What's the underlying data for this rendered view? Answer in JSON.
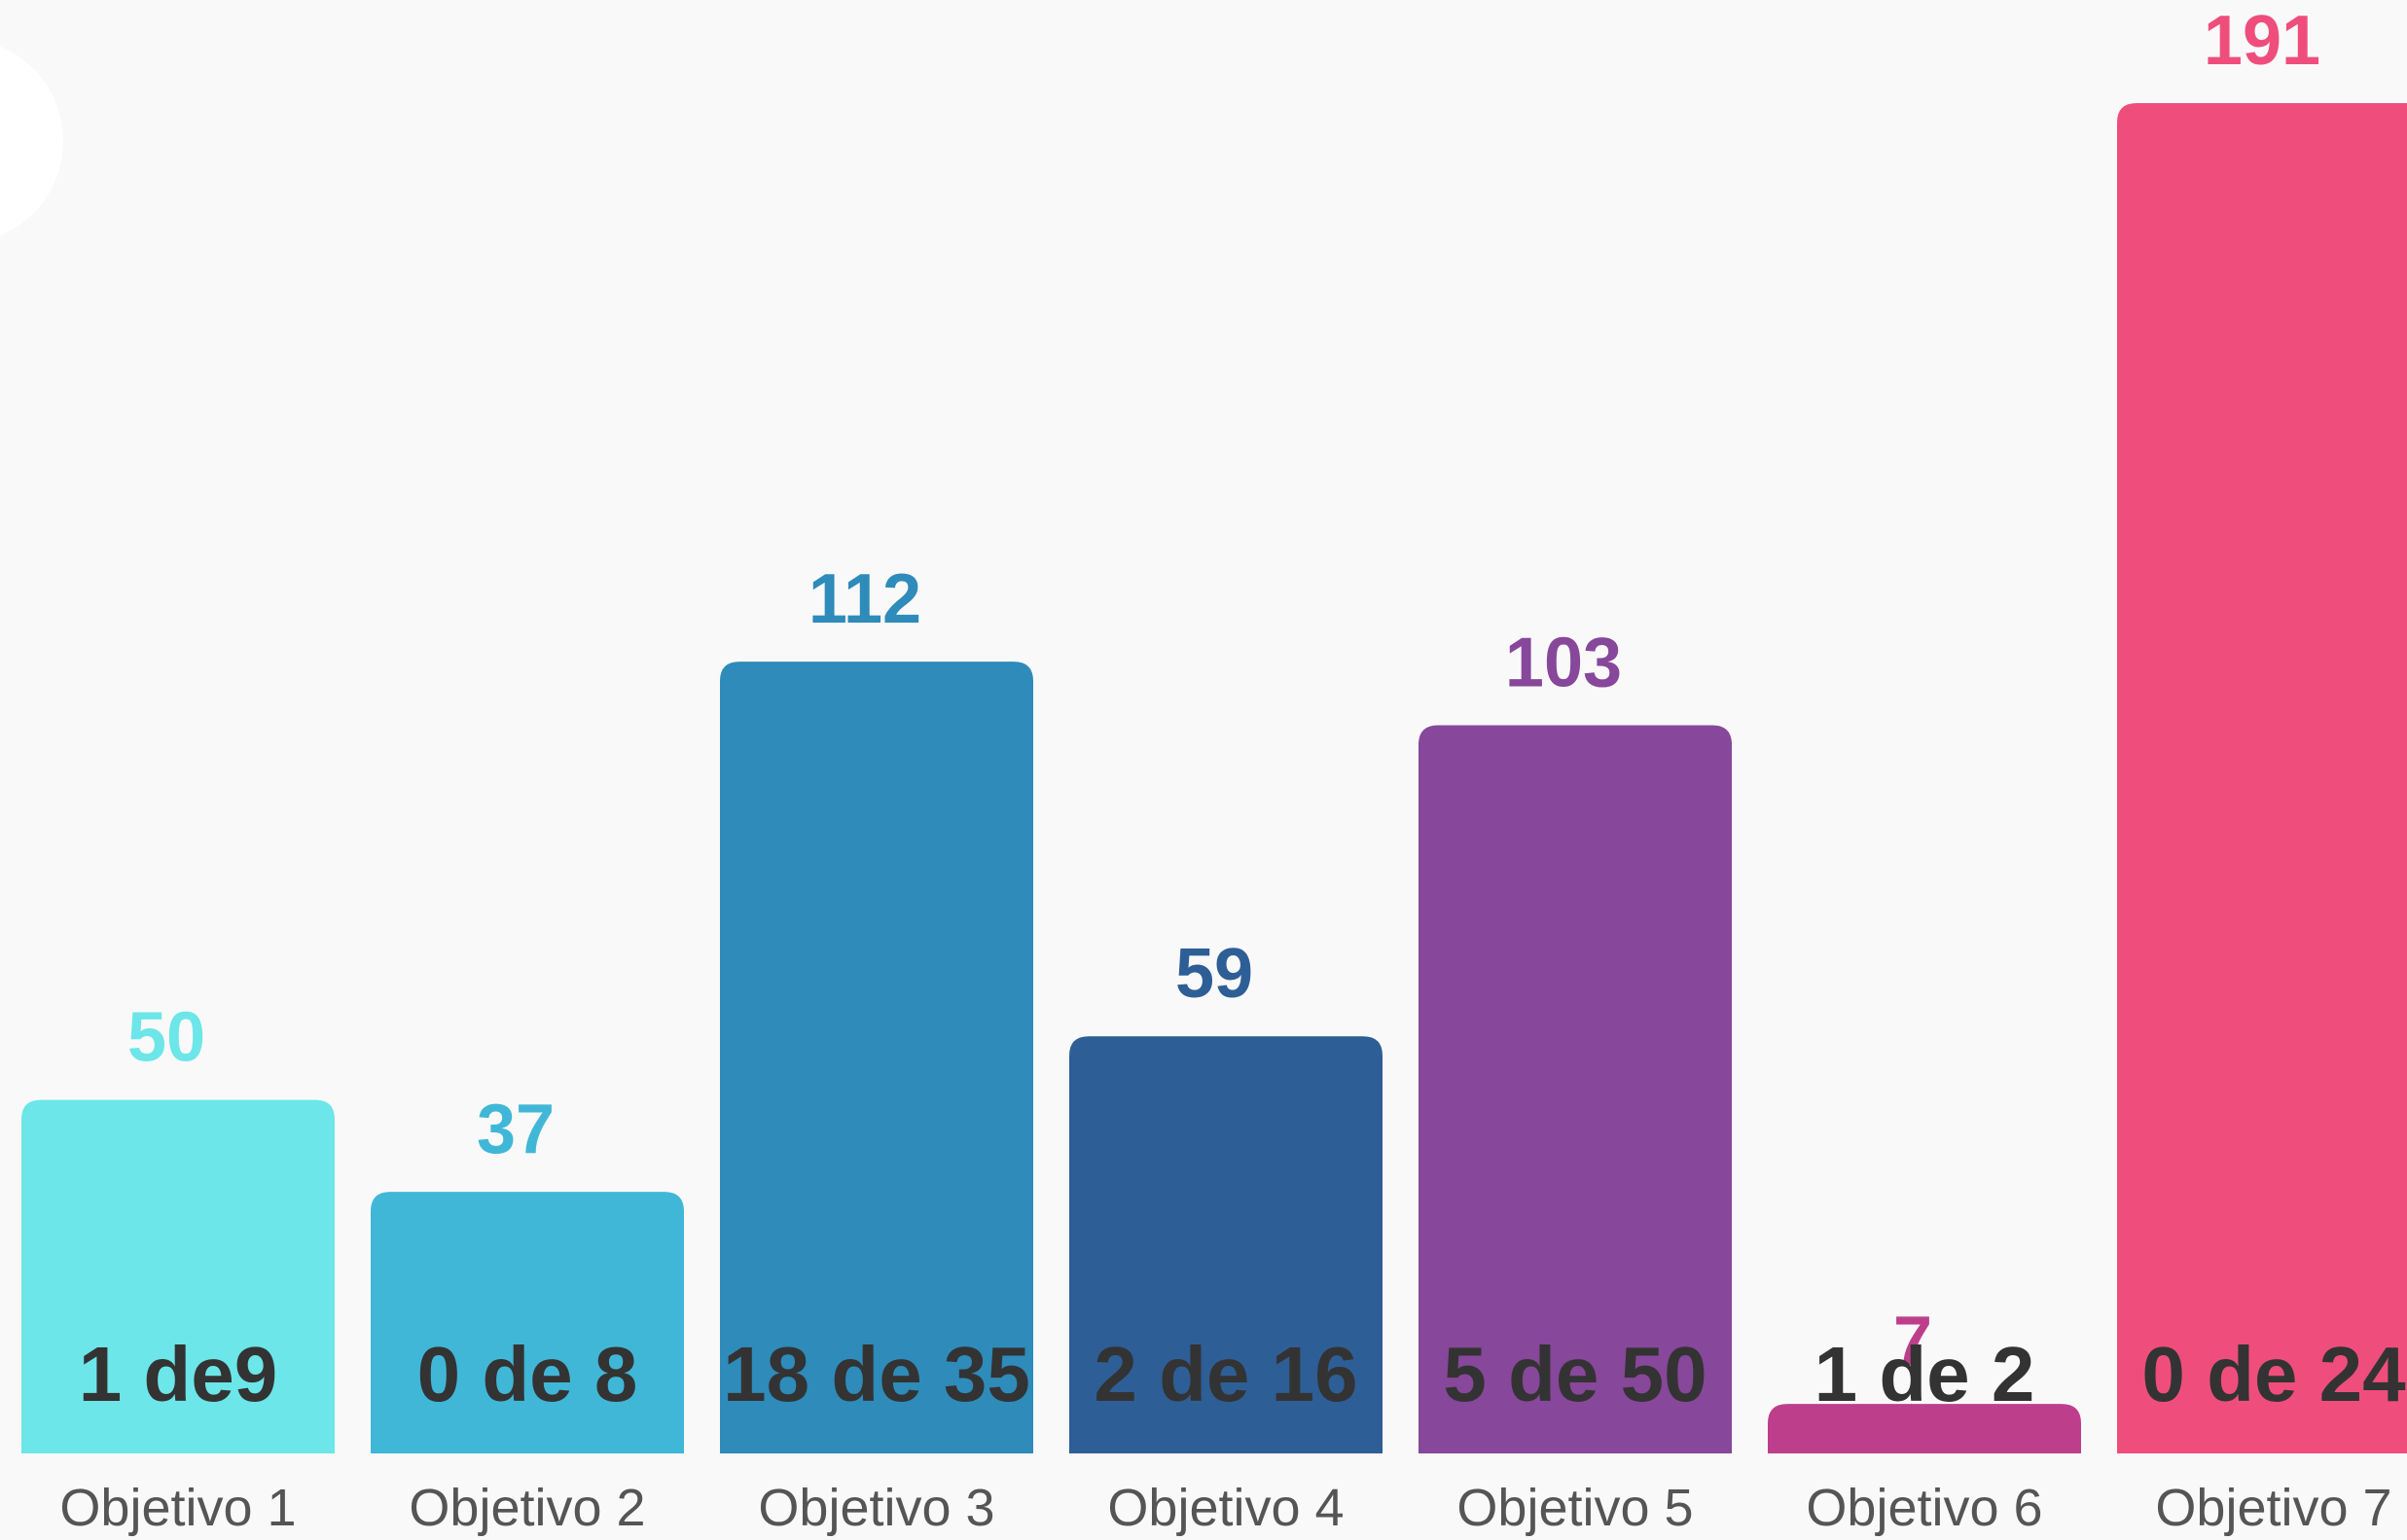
{
  "chart_data": {
    "type": "bar",
    "categories": [
      "Objetivo 1",
      "Objetivo 2",
      "Objetivo 3",
      "Objetivo 4",
      "Objetivo 5",
      "Objetivo 6",
      "Objetivo 7"
    ],
    "values": [
      50,
      37,
      112,
      59,
      103,
      7,
      191
    ],
    "inner_labels": [
      "1 de9",
      "0 de 8",
      "18 de 35",
      "2 de 16",
      "5 de 50",
      "1 de 2",
      "0 de 24"
    ],
    "colors": [
      "#6ce6e8",
      "#41b7d7",
      "#2e8bba",
      "#2e5e96",
      "#87479a",
      "#bd3f8c",
      "#ef4e7c"
    ]
  }
}
